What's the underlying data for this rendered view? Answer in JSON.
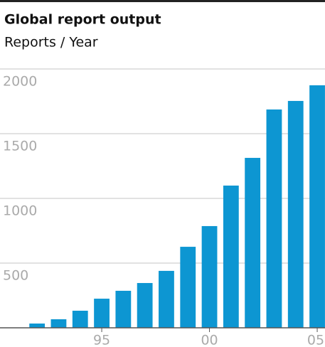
{
  "chart_data": {
    "type": "bar",
    "title": "Global report output",
    "subtitle": "Reports / Year",
    "categories": [
      null,
      null,
      null,
      "95",
      null,
      null,
      null,
      null,
      "00",
      null,
      null,
      null,
      null,
      "05"
    ],
    "values": [
      33,
      66,
      132,
      225,
      286,
      346,
      440,
      626,
      786,
      1099,
      1313,
      1687,
      1753,
      1874
    ],
    "color": "#0d96d2",
    "ylim": [
      0,
      2000
    ],
    "yticks": [
      500,
      1000,
      1500,
      2000
    ],
    "grid": true
  }
}
